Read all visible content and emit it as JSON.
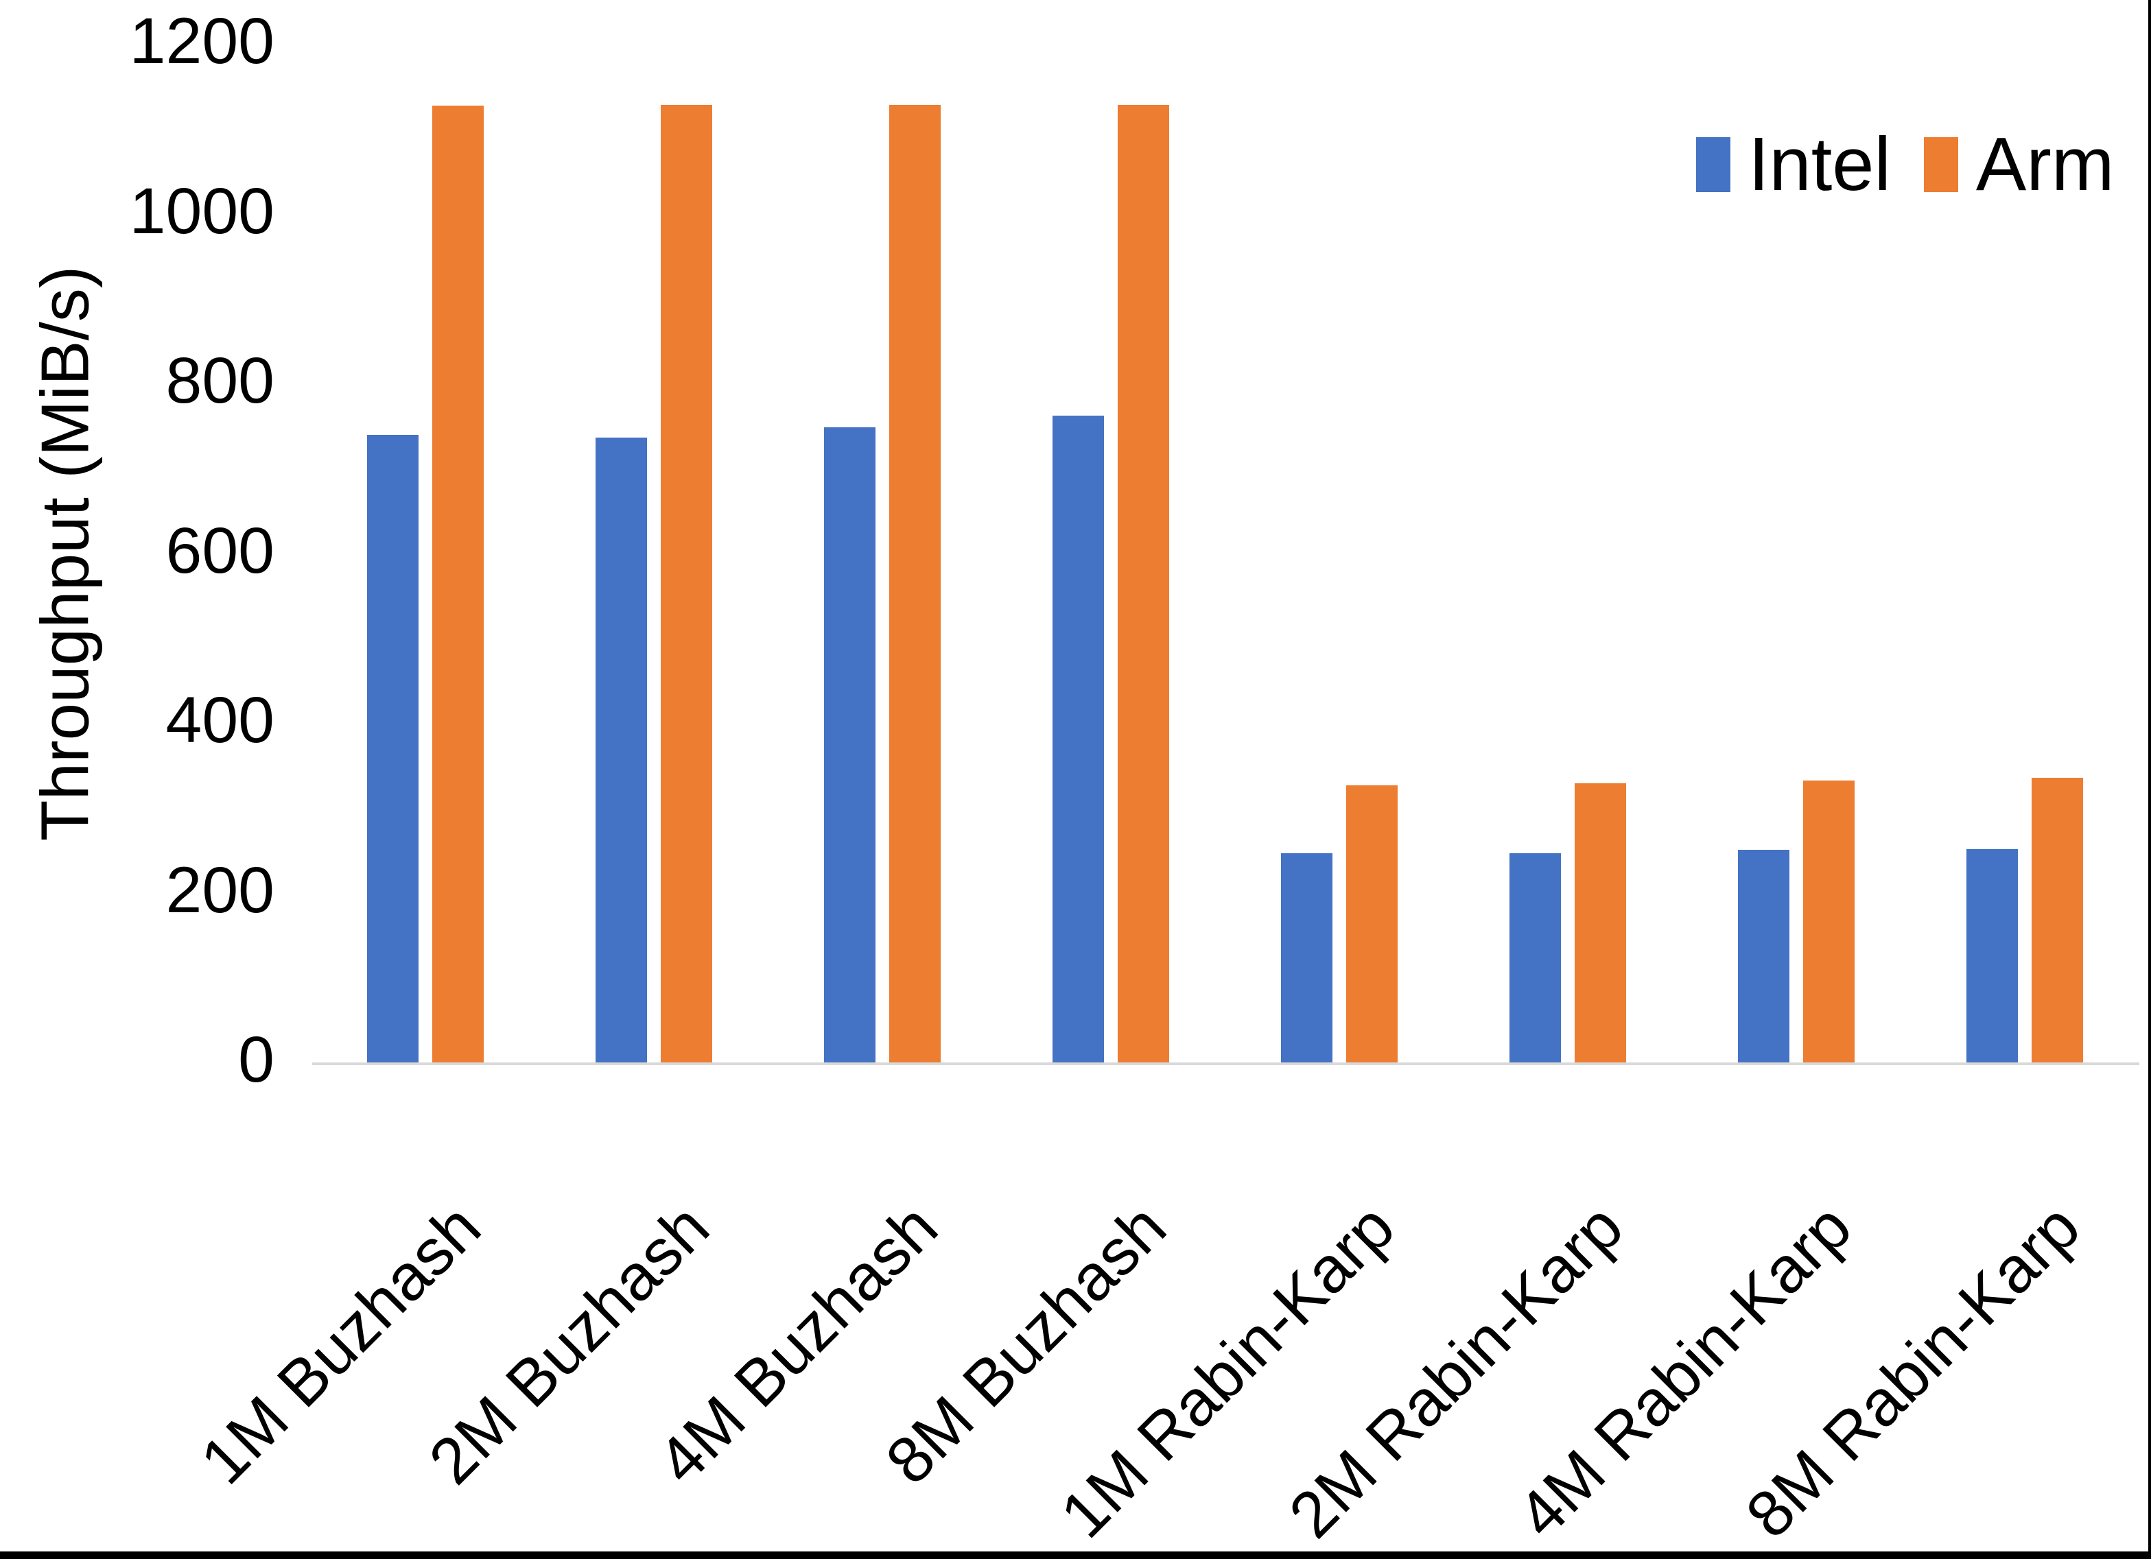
{
  "chart_data": {
    "type": "bar",
    "title": "",
    "xlabel": "",
    "ylabel": "Throughput (MiB/s)",
    "ylim": [
      0,
      1200
    ],
    "ytick_step": 200,
    "yticks": [
      1200,
      1000,
      800,
      600,
      400,
      200,
      0
    ],
    "grid": false,
    "legend_position": "top-right",
    "categories": [
      "1M Buzhash",
      "2M Buzhash",
      "4M Buzhash",
      "8M Buzhash",
      "1M Rabin-Karp",
      "2M Rabin-Karp",
      "4M Rabin-Karp",
      "8M Rabin-Karp"
    ],
    "series": [
      {
        "name": "Intel",
        "color": "#4472C4",
        "values": [
          740,
          737,
          749,
          763,
          247,
          247,
          251,
          252
        ]
      },
      {
        "name": "Arm",
        "color": "#ED7D31",
        "values": [
          1128,
          1129,
          1129,
          1129,
          327,
          330,
          333,
          336
        ]
      }
    ]
  },
  "legend": {
    "items": [
      {
        "label": "Intel",
        "color": "#4472C4"
      },
      {
        "label": "Arm",
        "color": "#ED7D31"
      }
    ]
  },
  "axis": {
    "line_color": "#D9D9D9",
    "text_color": "#000000"
  },
  "frame": {
    "bottom_bar_color": "#000000",
    "right_edge_color": "#000000"
  }
}
